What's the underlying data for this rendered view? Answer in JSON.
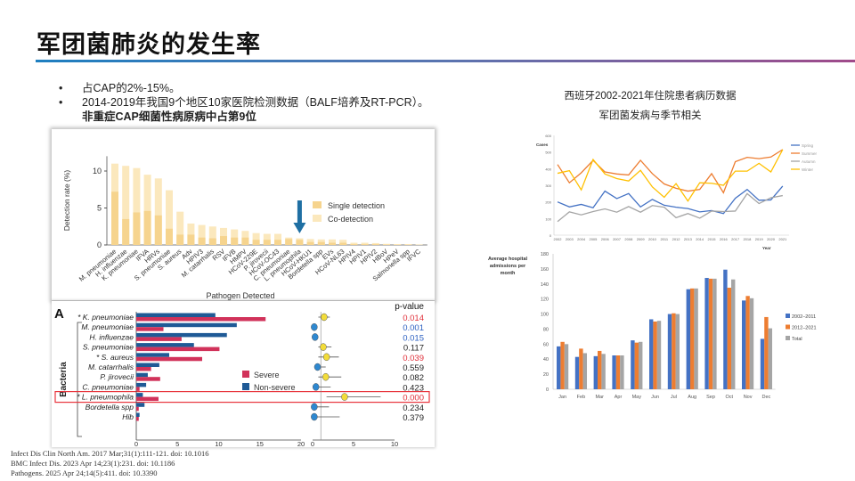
{
  "slide": {
    "title": "军团菌肺炎的发生率",
    "bullets": [
      "占CAP的2%-15%。",
      "2014-2019年我国9个地区10家医院检测数据（BALF培养及RT-PCR）。"
    ],
    "bullet2_bold": "非重症CAP细菌性病原病中占第9位",
    "right_title_1": "西班牙2002-2021年住院患者病历数据",
    "right_title_2": "军团菌发病与季节相关",
    "citations": [
      "Infect Dis Clin North Am. 2017 Mar;31(1):111-121. doi: 10.1016",
      "BMC Infect Dis. 2023 Apr 14;23(1):231. doi: 10.1186",
      "Pathogens. 2025 Apr 24;14(5):411. doi: 10.3390"
    ]
  },
  "chart_data": [
    {
      "type": "bar",
      "stacked": "overlay",
      "title": "",
      "xlabel": "Pathogen Detected",
      "ylabel": "Detection rate (%)",
      "ylim": [
        0,
        12
      ],
      "yticks": [
        "0",
        "5",
        "10"
      ],
      "categories": [
        "M. pneumoniae",
        "H. influenzae",
        "K. pneumoniae",
        "IFVA",
        "HRVs",
        "S. pneumoniae",
        "S. aureus",
        "Adv",
        "HPIV3",
        "M. catarrhalis",
        "RSV",
        "IFVB",
        "HMPV",
        "HCoV-229E",
        "P. jirovecii",
        "HCoV-OC43",
        "C. pneumoniae",
        "L. pneumophila",
        "HCoV-HKU1",
        "Bordetella spp",
        "EVs",
        "HCoV-NL63",
        "HPIV4",
        "HPIV1",
        "HPIV2",
        "HBoV",
        "HPeV",
        "Salmonella spp",
        "IFVC"
      ],
      "series": [
        {
          "name": "Single detection",
          "color": "#f6d48e",
          "values": [
            7.2,
            3.5,
            4.4,
            4.6,
            4.0,
            2.2,
            1.4,
            1.4,
            1.0,
            0.9,
            1.2,
            1.0,
            1.0,
            0.7,
            0.7,
            0.7,
            0.8,
            0.7,
            0.4,
            0.4,
            0.3,
            0.3,
            0.1,
            0.1,
            0.1,
            0.05,
            0.05,
            0.05,
            0.02
          ]
        },
        {
          "name": "Co-detection",
          "color": "#fbe8bd",
          "values": [
            11.0,
            10.7,
            10.4,
            9.5,
            9.0,
            7.4,
            4.5,
            2.9,
            2.7,
            2.5,
            2.3,
            2.1,
            1.9,
            1.6,
            1.5,
            1.5,
            1.0,
            0.9,
            0.8,
            0.75,
            0.75,
            0.7,
            0.3,
            0.3,
            0.25,
            0.15,
            0.1,
            0.1,
            0.05
          ]
        }
      ],
      "highlight": "L. pneumophila",
      "arrow_color": "#1f6fa3"
    },
    {
      "type": "bar",
      "orientation": "horizontal",
      "panel_label": "A",
      "group_label": "Bacteria",
      "pvalue_header": "p-value",
      "xlim": [
        0,
        20
      ],
      "xticks": [
        "0",
        "5",
        "10",
        "15",
        "20"
      ],
      "categories": [
        "* K. pneumoniae",
        "M. pneumoniae",
        "H. influenzae",
        "S. pneumoniae",
        "* S. aureus",
        "M. catarrhalis",
        "P. jirovecii",
        "C. pneumoniae",
        "* L. pneumophila",
        "Bordetella spp",
        "Hib"
      ],
      "series": [
        {
          "name": "Non-severe",
          "color": "#1f5a96",
          "values": [
            9.6,
            12.2,
            11.0,
            7.0,
            4.0,
            2.8,
            1.4,
            1.2,
            0.8,
            1.0,
            0.4
          ]
        },
        {
          "name": "Severe",
          "color": "#d1325a",
          "values": [
            15.7,
            3.3,
            5.5,
            10.1,
            8.0,
            1.8,
            2.9,
            0.4,
            2.7,
            0.3,
            0.3
          ]
        }
      ],
      "forest": {
        "xlim": [
          0,
          10
        ],
        "xticks": [
          "0",
          "5",
          "10"
        ],
        "estimate": [
          1.4,
          0.2,
          0.3,
          1.3,
          1.7,
          0.6,
          1.6,
          0.4,
          3.9,
          0.2,
          0.2
        ],
        "lower": [
          0.7,
          0,
          0.1,
          0.7,
          0.7,
          0.2,
          0.7,
          0,
          1.7,
          0,
          0
        ],
        "upper": [
          2.1,
          0.5,
          0.6,
          2.3,
          3.2,
          1.6,
          3.5,
          2.2,
          8.3,
          2.0,
          3.3
        ]
      },
      "pvalues": [
        "0.014",
        "0.001",
        "0.015",
        "0.117",
        "0.039",
        "0.559",
        "0.082",
        "0.423",
        "0.000",
        "0.234",
        "0.379"
      ],
      "pvalue_colors": [
        "#e0303a",
        "#2b5fc0",
        "#2b5fc0",
        "#222",
        "#e0303a",
        "#222",
        "#222",
        "#222",
        "#e0303a",
        "#222",
        "#222"
      ],
      "highlight_row": "* L. pneumophila"
    },
    {
      "type": "line",
      "ylabel": "Cases",
      "xlabel": "Year",
      "ylim": [
        0,
        600
      ],
      "yticks": [
        "0",
        "100",
        "200",
        "300",
        "400",
        "500",
        "600"
      ],
      "x": [
        "2002",
        "2003",
        "2004",
        "2005",
        "2006",
        "2007",
        "2008",
        "2009",
        "2010",
        "2011",
        "2012",
        "2013",
        "2014",
        "2015",
        "2016",
        "2017",
        "2018",
        "2019",
        "2020",
        "2021"
      ],
      "series": [
        {
          "name": "Spring",
          "color": "#4472c4",
          "values": [
            200,
            170,
            185,
            165,
            265,
            220,
            250,
            170,
            215,
            180,
            168,
            160,
            140,
            148,
            130,
            222,
            275,
            210,
            212,
            295
          ]
        },
        {
          "name": "Summer",
          "color": "#ed7d31",
          "values": [
            425,
            315,
            375,
            450,
            380,
            368,
            362,
            450,
            370,
            308,
            282,
            265,
            275,
            370,
            255,
            442,
            468,
            460,
            470,
            515
          ]
        },
        {
          "name": "Autumn",
          "color": "#a5a5a5",
          "values": [
            82,
            140,
            122,
            142,
            158,
            138,
            172,
            138,
            178,
            168,
            105,
            130,
            102,
            145,
            142,
            145,
            250,
            190,
            225,
            238
          ]
        },
        {
          "name": "Winter",
          "color": "#ffc000",
          "values": [
            372,
            388,
            272,
            455,
            368,
            340,
            326,
            390,
            290,
            228,
            310,
            205,
            315,
            312,
            300,
            385,
            385,
            432,
            380,
            515
          ]
        }
      ]
    },
    {
      "type": "bar",
      "ylabel": "Average hospital admissions per month",
      "ylim": [
        0,
        180
      ],
      "yticks": [
        "0",
        "20",
        "40",
        "60",
        "80",
        "100",
        "120",
        "140",
        "160",
        "180"
      ],
      "categories": [
        "Jan",
        "Feb",
        "Mar",
        "Apr",
        "May",
        "Jun",
        "Jul",
        "Aug",
        "Sep",
        "Oct",
        "Nov",
        "Dec"
      ],
      "series": [
        {
          "name": "2002–2011",
          "color": "#4472c4",
          "values": [
            57,
            43,
            44,
            45,
            65,
            93,
            100,
            133,
            148,
            159,
            118,
            67
          ]
        },
        {
          "name": "2012–2021",
          "color": "#ed7d31",
          "values": [
            63,
            54,
            51,
            45,
            62,
            90,
            101,
            134,
            147,
            135,
            124,
            96
          ]
        },
        {
          "name": "Total",
          "color": "#a5a5a5",
          "values": [
            60,
            48,
            47,
            45,
            63,
            91,
            100,
            134,
            147,
            146,
            121,
            81
          ]
        }
      ]
    }
  ]
}
